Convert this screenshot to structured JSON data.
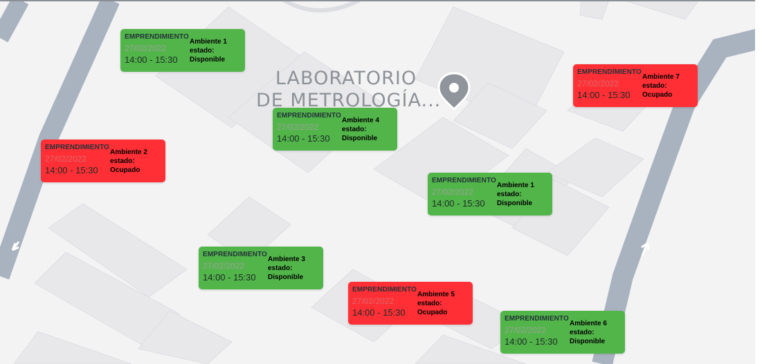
{
  "map": {
    "poi": {
      "line1": "LABORATORIO",
      "line2": "DE METROLOGÍA..."
    },
    "colors": {
      "available": "#52b54a",
      "occupied": "#ff2f35",
      "road": "#a9b3c0",
      "background": "#f3f3f4",
      "block": "#e7e7ea"
    },
    "icons": [
      "location-pin-icon",
      "arrow-icon"
    ]
  },
  "cards": [
    {
      "category": "EMPRENDIMIENTO",
      "date": "27/02/2022",
      "time": "14:00 - 15:30",
      "room": "Ambiente 1",
      "state_label": "estado:",
      "state": "Disponible",
      "status": "available"
    },
    {
      "category": "EMPRENDIMIENTO",
      "date": "27/02/2022",
      "time": "14:00 - 15:30",
      "room": "Ambiente 7",
      "state_label": "estado:",
      "state": "Ocupado",
      "status": "occupied"
    },
    {
      "category": "EMPRENDIMIENTO",
      "date": "27/02/2022",
      "time": "14:00 - 15:30",
      "room": "Ambiente 4",
      "state_label": "estado:",
      "state": "Disponible",
      "status": "available"
    },
    {
      "category": "EMPRENDIMIENTO",
      "date": "27/02/2022",
      "time": "14:00 - 15:30",
      "room": "Ambiente 2",
      "state_label": "estado:",
      "state": "Ocupado",
      "status": "occupied"
    },
    {
      "category": "EMPRENDIMIENTO",
      "date": "27/02/2022",
      "time": "14:00 - 15:30",
      "room": "Ambiente 1",
      "state_label": "estado:",
      "state": "Disponible",
      "status": "available"
    },
    {
      "category": "EMPRENDIMIENTO",
      "date": "27/02/2022",
      "time": "14:00 - 15:30",
      "room": "Ambiente 3",
      "state_label": "estado:",
      "state": "Disponible",
      "status": "available"
    },
    {
      "category": "EMPRENDIMIENTO",
      "date": "27/02/2022",
      "time": "14:00 - 15:30",
      "room": "Ambiente 5",
      "state_label": "estado:",
      "state": "Ocupado",
      "status": "occupied"
    },
    {
      "category": "EMPRENDIMIENTO",
      "date": "27/02/2022",
      "time": "14:00 - 15:30",
      "room": "Ambiente 6",
      "state_label": "estado:",
      "state": "Disponible",
      "status": "available"
    }
  ]
}
